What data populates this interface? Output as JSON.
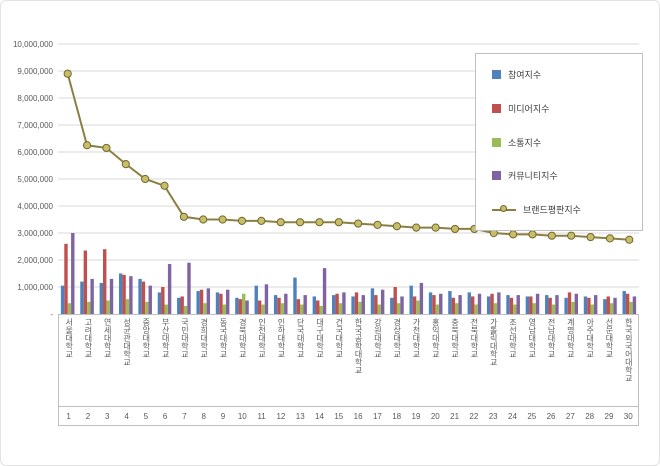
{
  "chart_data": {
    "type": "bar+line",
    "title": "",
    "xlabel": "",
    "ylabel": "",
    "ylim": [
      0,
      10000000
    ],
    "grid": true,
    "legend_position": "top-right",
    "y_ticks": [
      "10,000,000",
      "9,000,000",
      "8,000,000",
      "7,000,000",
      "6,000,000",
      "5,000,000",
      "4,000,000",
      "3,000,000",
      "2,000,000",
      "1,000,000",
      "-"
    ],
    "categories": [
      "서울대학교",
      "고려대학교",
      "연세대학교",
      "성균관대학교",
      "중앙대학교",
      "부산대학교",
      "국민대학교",
      "경희대학교",
      "동국대학교",
      "경북대학교",
      "인천대학교",
      "인하대학교",
      "단국대학교",
      "대구대학교",
      "건국대학교",
      "한국공학대학교",
      "강원대학교",
      "경상대학교",
      "가천대학교",
      "홍익대학교",
      "충북대학교",
      "전북대학교",
      "가톨릭대학교",
      "조선대학교",
      "영남대학교",
      "전남대학교",
      "계명대학교",
      "아주대학교",
      "선문대학교",
      "한국외국어대학교"
    ],
    "rank_labels": [
      "1",
      "2",
      "3",
      "4",
      "5",
      "6",
      "7",
      "8",
      "9",
      "10",
      "11",
      "12",
      "13",
      "14",
      "15",
      "16",
      "17",
      "18",
      "19",
      "20",
      "21",
      "22",
      "23",
      "24",
      "25",
      "26",
      "27",
      "28",
      "29",
      "30"
    ],
    "series": [
      {
        "name": "참여지수",
        "color": "#4f81bd",
        "values": [
          1050000,
          1200000,
          1150000,
          1500000,
          1300000,
          800000,
          600000,
          850000,
          800000,
          600000,
          1050000,
          700000,
          1350000,
          650000,
          700000,
          650000,
          950000,
          600000,
          1050000,
          800000,
          850000,
          800000,
          650000,
          700000,
          650000,
          700000,
          600000,
          650000,
          550000,
          850000
        ]
      },
      {
        "name": "미디어지수",
        "color": "#c0504d",
        "values": [
          2600000,
          2350000,
          2400000,
          1450000,
          1200000,
          1000000,
          650000,
          900000,
          750000,
          550000,
          500000,
          600000,
          550000,
          500000,
          750000,
          800000,
          700000,
          1000000,
          650000,
          700000,
          600000,
          650000,
          750000,
          600000,
          650000,
          600000,
          800000,
          600000,
          650000,
          750000
        ]
      },
      {
        "name": "소통지수",
        "color": "#9bbb59",
        "values": [
          400000,
          450000,
          500000,
          550000,
          450000,
          350000,
          300000,
          400000,
          350000,
          750000,
          350000,
          400000,
          350000,
          300000,
          400000,
          450000,
          350000,
          400000,
          500000,
          350000,
          400000,
          350000,
          400000,
          350000,
          400000,
          350000,
          450000,
          350000,
          400000,
          450000
        ]
      },
      {
        "name": "커뮤니티지수",
        "color": "#8064a2",
        "values": [
          3000000,
          1300000,
          1300000,
          1400000,
          1050000,
          1850000,
          1900000,
          950000,
          900000,
          500000,
          1100000,
          750000,
          700000,
          1700000,
          800000,
          700000,
          900000,
          650000,
          1150000,
          750000,
          700000,
          750000,
          800000,
          700000,
          750000,
          700000,
          750000,
          700000,
          600000,
          650000
        ]
      }
    ],
    "line_series": {
      "name": "브랜드평판지수",
      "color": "#8b8042",
      "marker_fill": "#c9bd67",
      "marker_stroke": "#6f6830",
      "values": [
        8900000,
        6250000,
        6150000,
        5550000,
        5000000,
        4750000,
        3600000,
        3500000,
        3500000,
        3450000,
        3450000,
        3400000,
        3400000,
        3400000,
        3400000,
        3350000,
        3300000,
        3250000,
        3200000,
        3200000,
        3150000,
        3150000,
        3000000,
        2950000,
        2950000,
        2900000,
        2900000,
        2850000,
        2800000,
        2750000
      ]
    }
  }
}
